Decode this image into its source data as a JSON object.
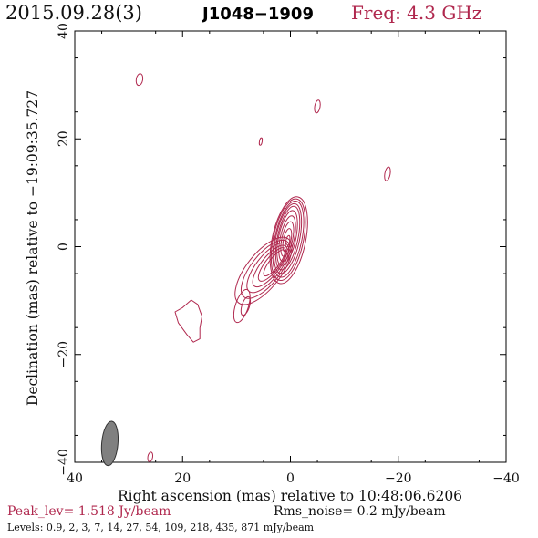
{
  "header": {
    "date": "2015.09.28(3)",
    "source": "J1048−1909",
    "frequency": "Freq: 4.3 GHz"
  },
  "footer": {
    "peak": "Peak_lev=  1.518 Jy/beam",
    "rms": "Rms_noise=  0.2 mJy/beam",
    "levels": "Levels: 0.9,   2,   3,   7,  14,  27,  54, 109, 218, 435, 871 mJy/beam"
  },
  "colors": {
    "contour": "#b0284e",
    "beam": "#808080",
    "axes": "#000000",
    "header_accent": "#b0284e"
  },
  "chart_data": {
    "type": "contour",
    "xlabel": "Right ascension (mas) relative to 10:48:06.6206",
    "ylabel": "Declination (mas) relative to −19:09:35.727",
    "xlim": [
      40,
      -40
    ],
    "ylim": [
      -40,
      40
    ],
    "xticks": [
      40,
      20,
      0,
      -20,
      -40
    ],
    "yticks": [
      40,
      20,
      0,
      -20,
      -40
    ],
    "xtick_labels": [
      "40",
      "20",
      "0",
      "−20",
      "−40"
    ],
    "ytick_labels": [
      "40",
      "20",
      "0",
      "−20",
      "−40"
    ],
    "peak_jy_per_beam": 1.518,
    "rms_mjy_per_beam": 0.2,
    "levels_mjy": [
      0.9,
      2,
      3,
      7,
      14,
      27,
      54,
      109,
      218,
      435,
      871
    ],
    "core": {
      "x": 0,
      "y": 0
    },
    "core_contours": [
      {
        "cx": 0.3,
        "cy": 1.2,
        "rx": 3.1,
        "ry": 8.2
      },
      {
        "cx": 0.4,
        "cy": 1.3,
        "rx": 2.8,
        "ry": 7.7
      },
      {
        "cx": 0.4,
        "cy": 1.4,
        "rx": 2.5,
        "ry": 7.2
      },
      {
        "cx": 0.5,
        "cy": 1.5,
        "rx": 2.2,
        "ry": 6.6
      },
      {
        "cx": 0.5,
        "cy": 1.6,
        "rx": 1.9,
        "ry": 6.0
      },
      {
        "cx": 0.6,
        "cy": 1.6,
        "rx": 1.6,
        "ry": 5.2
      },
      {
        "cx": 0.6,
        "cy": 1.5,
        "rx": 1.3,
        "ry": 4.3
      },
      {
        "cx": 0.6,
        "cy": 1.4,
        "rx": 1.0,
        "ry": 3.3
      },
      {
        "cx": 0.6,
        "cy": 1.2,
        "rx": 0.7,
        "ry": 2.2
      },
      {
        "cx": 0.5,
        "cy": 1.0,
        "rx": 0.35,
        "ry": 1.1
      }
    ],
    "jet_contours": [
      {
        "cx": 5.0,
        "cy": -4.5,
        "rx": 3.2,
        "ry": 7.5
      },
      {
        "cx": 4.6,
        "cy": -4.2,
        "rx": 2.7,
        "ry": 6.5
      },
      {
        "cx": 4.2,
        "cy": -3.9,
        "rx": 2.2,
        "ry": 5.6
      },
      {
        "cx": 3.8,
        "cy": -3.6,
        "rx": 1.7,
        "ry": 4.7
      },
      {
        "cx": 3.4,
        "cy": -3.3,
        "rx": 1.3,
        "ry": 3.8
      },
      {
        "cx": 3.0,
        "cy": -3.0,
        "rx": 0.9,
        "ry": 3.0
      }
    ],
    "component_contours": [
      {
        "cx": 9.0,
        "cy": -11.0,
        "rx": 1.2,
        "ry": 3.2
      },
      {
        "cx": 8.3,
        "cy": -11.0,
        "rx": 0.7,
        "ry": 1.8
      }
    ],
    "islands": [
      {
        "cx": 28.0,
        "cy": 31.0,
        "rx": 0.6,
        "ry": 1.1
      },
      {
        "cx": -5.0,
        "cy": 26.0,
        "rx": 0.5,
        "ry": 1.2
      },
      {
        "cx": 5.5,
        "cy": 19.5,
        "rx": 0.25,
        "ry": 0.7
      },
      {
        "cx": -18.0,
        "cy": 13.5,
        "rx": 0.5,
        "ry": 1.3
      },
      {
        "cx": 26.0,
        "cy": -39.0,
        "rx": 0.45,
        "ry": 0.9
      }
    ],
    "irregular_component_center": {
      "x": 19.0,
      "y": -13.5
    },
    "beam": {
      "x": 33.5,
      "y": -36.5,
      "major_mas": 5.5,
      "minor_mas": 2.0,
      "pa_deg": 5
    }
  }
}
